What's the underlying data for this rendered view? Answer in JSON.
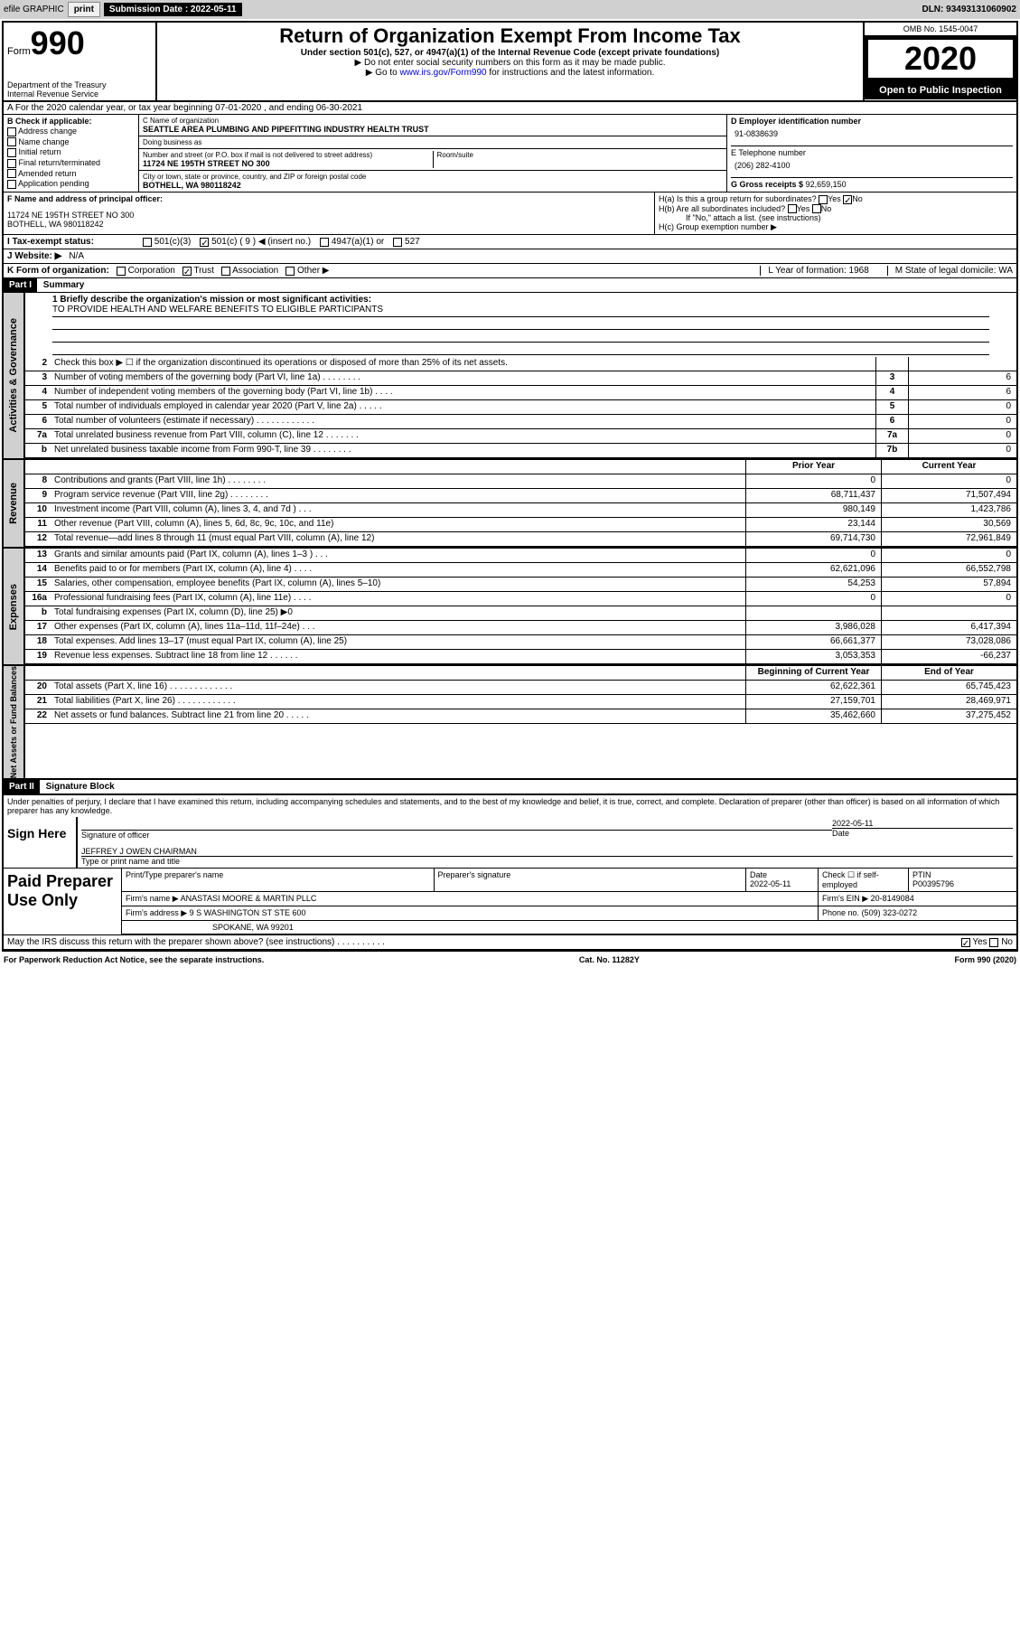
{
  "topbar": {
    "efile": "efile GRAPHIC",
    "print": "print",
    "sub_label": "Submission Date : 2022-05-11",
    "dln": "DLN: 93493131060902"
  },
  "header": {
    "form_label": "Form",
    "form_num": "990",
    "dept": "Department of the Treasury\nInternal Revenue Service",
    "title": "Return of Organization Exempt From Income Tax",
    "sub1": "Under section 501(c), 527, or 4947(a)(1) of the Internal Revenue Code (except private foundations)",
    "sub2": "▶ Do not enter social security numbers on this form as it may be made public.",
    "sub3_pre": "▶ Go to ",
    "sub3_link": "www.irs.gov/Form990",
    "sub3_post": " for instructions and the latest information.",
    "omb": "OMB No. 1545-0047",
    "year": "2020",
    "open": "Open to Public Inspection"
  },
  "row_a": "A For the 2020 calendar year, or tax year beginning 07-01-2020    , and ending 06-30-2021",
  "box_b": {
    "title": "B Check if applicable:",
    "opts": [
      "Address change",
      "Name change",
      "Initial return",
      "Final return/terminated",
      "Amended return",
      "Application pending"
    ]
  },
  "box_c": {
    "name_lbl": "C Name of organization",
    "name": "SEATTLE AREA PLUMBING AND PIPEFITTING INDUSTRY HEALTH TRUST",
    "dba_lbl": "Doing business as",
    "dba": "",
    "addr_lbl": "Number and street (or P.O. box if mail is not delivered to street address)",
    "room_lbl": "Room/suite",
    "addr": "11724 NE 195TH STREET NO 300",
    "city_lbl": "City or town, state or province, country, and ZIP or foreign postal code",
    "city": "BOTHELL, WA  980118242"
  },
  "box_d": {
    "lbl": "D Employer identification number",
    "val": "91-0838639"
  },
  "box_e": {
    "lbl": "E Telephone number",
    "val": "(206) 282-4100"
  },
  "box_g": {
    "lbl": "G Gross receipts $",
    "val": "92,659,150"
  },
  "box_f": {
    "lbl": "F  Name and address of principal officer:",
    "val1": "11724 NE 195TH STREET NO 300",
    "val2": "BOTHELL, WA  980118242"
  },
  "box_h": {
    "a": "H(a)  Is this a group return for subordinates?",
    "a_no": "No",
    "b": "H(b)  Are all subordinates included?",
    "b_note": "If \"No,\" attach a list. (see instructions)",
    "c": "H(c)  Group exemption number ▶"
  },
  "row_i": {
    "lbl": "I   Tax-exempt status:",
    "o1": "501(c)(3)",
    "o2": "501(c) ( 9 ) ◀ (insert no.)",
    "o3": "4947(a)(1) or",
    "o4": "527"
  },
  "row_j": {
    "lbl": "J   Website: ▶",
    "val": "N/A"
  },
  "row_k": {
    "lbl": "K Form of organization:",
    "o1": "Corporation",
    "o2": "Trust",
    "o3": "Association",
    "o4": "Other ▶",
    "l": "L Year of formation: 1968",
    "m": "M State of legal domicile: WA"
  },
  "part1": {
    "hdr": "Part I",
    "title": "Summary"
  },
  "mission": {
    "q": "1   Briefly describe the organization's mission or most significant activities:",
    "a": "TO PROVIDE HEALTH AND WELFARE BENEFITS TO ELIGIBLE PARTICIPANTS"
  },
  "gov_lines": [
    {
      "n": "2",
      "d": "Check this box ▶ ☐  if the organization discontinued its operations or disposed of more than 25% of its net assets.",
      "b": "",
      "v": ""
    },
    {
      "n": "3",
      "d": "Number of voting members of the governing body (Part VI, line 1a)   .    .    .    .    .    .    .    .",
      "b": "3",
      "v": "6"
    },
    {
      "n": "4",
      "d": "Number of independent voting members of the governing body (Part VI, line 1b)   .    .    .    .",
      "b": "4",
      "v": "6"
    },
    {
      "n": "5",
      "d": "Total number of individuals employed in calendar year 2020 (Part V, line 2a)   .    .    .    .    .",
      "b": "5",
      "v": "0"
    },
    {
      "n": "6",
      "d": "Total number of volunteers (estimate if necessary)   .    .    .    .    .    .    .    .    .    .    .    .",
      "b": "6",
      "v": "0"
    },
    {
      "n": "7a",
      "d": "Total unrelated business revenue from Part VIII, column (C), line 12   .    .    .    .    .    .    .",
      "b": "7a",
      "v": "0"
    },
    {
      "n": "b",
      "d": "Net unrelated business taxable income from Form 990-T, line 39   .    .    .    .    .    .    .    .",
      "b": "7b",
      "v": "0"
    }
  ],
  "fin_hdr": {
    "py": "Prior Year",
    "cy": "Current Year"
  },
  "rev_lines": [
    {
      "n": "8",
      "d": "Contributions and grants (Part VIII, line 1h)   .    .    .    .    .    .    .    .",
      "py": "0",
      "cy": "0"
    },
    {
      "n": "9",
      "d": "Program service revenue (Part VIII, line 2g)   .    .    .    .    .    .    .    .",
      "py": "68,711,437",
      "cy": "71,507,494"
    },
    {
      "n": "10",
      "d": "Investment income (Part VIII, column (A), lines 3, 4, and 7d )   .    .    .",
      "py": "980,149",
      "cy": "1,423,786"
    },
    {
      "n": "11",
      "d": "Other revenue (Part VIII, column (A), lines 5, 6d, 8c, 9c, 10c, and 11e)",
      "py": "23,144",
      "cy": "30,569"
    },
    {
      "n": "12",
      "d": "Total revenue—add lines 8 through 11 (must equal Part VIII, column (A), line 12)",
      "py": "69,714,730",
      "cy": "72,961,849"
    }
  ],
  "exp_lines": [
    {
      "n": "13",
      "d": "Grants and similar amounts paid (Part IX, column (A), lines 1–3 )   .    .    .",
      "py": "0",
      "cy": "0"
    },
    {
      "n": "14",
      "d": "Benefits paid to or for members (Part IX, column (A), line 4)   .    .    .    .",
      "py": "62,621,096",
      "cy": "66,552,798"
    },
    {
      "n": "15",
      "d": "Salaries, other compensation, employee benefits (Part IX, column (A), lines 5–10)",
      "py": "54,253",
      "cy": "57,894"
    },
    {
      "n": "16a",
      "d": "Professional fundraising fees (Part IX, column (A), line 11e)   .    .    .    .",
      "py": "0",
      "cy": "0"
    },
    {
      "n": "b",
      "d": "Total fundraising expenses (Part IX, column (D), line 25) ▶0",
      "py": "",
      "cy": ""
    },
    {
      "n": "17",
      "d": "Other expenses (Part IX, column (A), lines 11a–11d, 11f–24e)   .    .    .",
      "py": "3,986,028",
      "cy": "6,417,394"
    },
    {
      "n": "18",
      "d": "Total expenses. Add lines 13–17 (must equal Part IX, column (A), line 25)",
      "py": "66,661,377",
      "cy": "73,028,086"
    },
    {
      "n": "19",
      "d": "Revenue less expenses. Subtract line 18 from line 12   .    .    .    .    .    .",
      "py": "3,053,353",
      "cy": "-66,237"
    }
  ],
  "na_hdr": {
    "py": "Beginning of Current Year",
    "cy": "End of Year"
  },
  "na_lines": [
    {
      "n": "20",
      "d": "Total assets (Part X, line 16)   .    .    .    .    .    .    .    .    .    .    .    .    .",
      "py": "62,622,361",
      "cy": "65,745,423"
    },
    {
      "n": "21",
      "d": "Total liabilities (Part X, line 26)   .    .    .    .    .    .    .    .    .    .    .    .",
      "py": "27,159,701",
      "cy": "28,469,971"
    },
    {
      "n": "22",
      "d": "Net assets or fund balances. Subtract line 21 from line 20   .    .    .    .   .",
      "py": "35,462,660",
      "cy": "37,275,452"
    }
  ],
  "part2": {
    "hdr": "Part II",
    "title": "Signature Block"
  },
  "decl": "Under penalties of perjury, I declare that I have examined this return, including accompanying schedules and statements, and to the best of my knowledge and belief, it is true, correct, and complete. Declaration of preparer (other than officer) is based on all information of which preparer has any knowledge.",
  "sign": {
    "here": "Sign Here",
    "sig_lbl": "Signature of officer",
    "date_lbl": "Date",
    "date": "2022-05-11",
    "name": "JEFFREY J OWEN CHAIRMAN",
    "name_lbl": "Type or print name and title"
  },
  "prep": {
    "title": "Paid Preparer Use Only",
    "h1": "Print/Type preparer's name",
    "h2": "Preparer's signature",
    "h3": "Date",
    "h3v": "2022-05-11",
    "h4": "Check ☐ if self-employed",
    "h5": "PTIN",
    "h5v": "P00395796",
    "firm_lbl": "Firm's name      ▶",
    "firm": "ANASTASI MOORE & MARTIN PLLC",
    "ein_lbl": "Firm's EIN ▶",
    "ein": "20-8149084",
    "addr_lbl": "Firm's address ▶",
    "addr1": "9 S WASHINGTON ST STE 600",
    "addr2": "SPOKANE, WA  99201",
    "phone_lbl": "Phone no.",
    "phone": "(509) 323-0272"
  },
  "discuss": "May the IRS discuss this return with the preparer shown above? (see instructions)   .    .    .    .    .    .    .    .    .    .",
  "discuss_yes": "Yes",
  "discuss_no": "No",
  "footer": {
    "l": "For Paperwork Reduction Act Notice, see the separate instructions.",
    "m": "Cat. No. 11282Y",
    "r": "Form 990 (2020)"
  }
}
